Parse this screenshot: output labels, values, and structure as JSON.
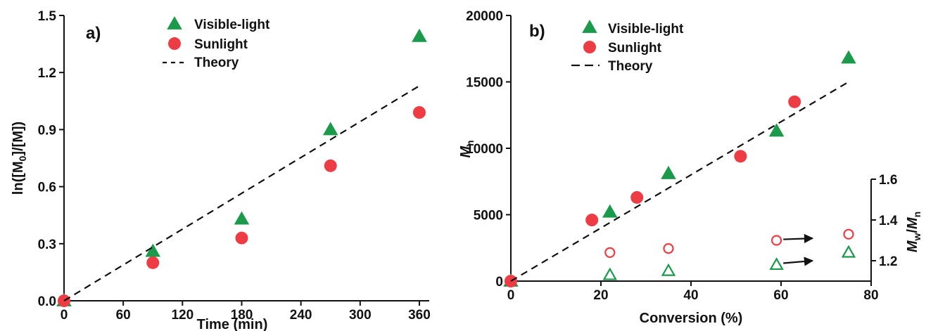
{
  "colors": {
    "visible": "#1a9a4a",
    "sunlight": "#ee3c44",
    "theory": "#111111",
    "axis": "#111111"
  },
  "chart_data": [
    {
      "type": "scatter",
      "panel_label": "a)",
      "xlabel": "Time (min)",
      "ylabel": "ln([M0]/[M])",
      "ylabel_parts": {
        "pre": "ln([M",
        "sub": "0",
        "post": "]/[M])"
      },
      "xlim": [
        0,
        370
      ],
      "ylim": [
        0,
        1.5
      ],
      "xticks": [
        0,
        60,
        120,
        180,
        240,
        300,
        360
      ],
      "yticks": [
        0.0,
        0.3,
        0.6,
        0.9,
        1.2,
        1.5
      ],
      "ytick_labels": [
        "0.0",
        "0.3",
        "0.6",
        "0.9",
        "1.2",
        "1.5"
      ],
      "legend": {
        "placement": "top-center",
        "entries": [
          "Visible-light",
          "Sunlight",
          "Theory"
        ]
      },
      "series": [
        {
          "name": "Visible-light",
          "marker": "filled-triangle",
          "points": [
            [
              0,
              0.0
            ],
            [
              90,
              0.26
            ],
            [
              180,
              0.43
            ],
            [
              270,
              0.9
            ],
            [
              360,
              1.39
            ]
          ]
        },
        {
          "name": "Sunlight",
          "marker": "filled-circle",
          "points": [
            [
              0,
              0.0
            ],
            [
              90,
              0.2
            ],
            [
              180,
              0.33
            ],
            [
              270,
              0.71
            ],
            [
              360,
              0.99
            ]
          ]
        },
        {
          "name": "Theory",
          "marker": "dashed-line",
          "points": [
            [
              0,
              0.0
            ],
            [
              360,
              1.13
            ]
          ]
        }
      ]
    },
    {
      "type": "scatter",
      "panel_label": "b)",
      "xlabel": "Conversion (%)",
      "ylabel": "Mn",
      "ylabel_parts": {
        "main": "M",
        "sub": "n"
      },
      "y2label": "Mw/Mn",
      "y2label_parts": {
        "main1": "M",
        "sub1": "w",
        "slash": "/",
        "main2": "M",
        "sub2": "n"
      },
      "xlim": [
        0,
        80
      ],
      "ylim": [
        0,
        20000
      ],
      "y2lim": [
        1.1,
        1.6
      ],
      "y2axis_range": [
        1.1,
        1.6
      ],
      "xticks": [
        0,
        20,
        40,
        60,
        80
      ],
      "yticks": [
        0,
        5000,
        10000,
        15000,
        20000
      ],
      "y2ticks": [
        1.2,
        1.4,
        1.6
      ],
      "y2tick_labels": [
        "1.2",
        "1.4",
        "1.6"
      ],
      "legend": {
        "placement": "top-left",
        "entries": [
          "Visible-light",
          "Sunlight",
          "Theory"
        ]
      },
      "series": [
        {
          "name": "Visible-light",
          "marker": "filled-triangle",
          "axis": "left",
          "points": [
            [
              0,
              0
            ],
            [
              22,
              5200
            ],
            [
              35,
              8100
            ],
            [
              59,
              11300
            ],
            [
              75,
              16800
            ]
          ]
        },
        {
          "name": "Sunlight",
          "marker": "filled-circle",
          "axis": "left",
          "points": [
            [
              0,
              0
            ],
            [
              18,
              4600
            ],
            [
              28,
              6300
            ],
            [
              51,
              9400
            ],
            [
              63,
              13500
            ]
          ]
        },
        {
          "name": "Theory",
          "marker": "dashed-line",
          "axis": "left",
          "points": [
            [
              0,
              0
            ],
            [
              75,
              15000
            ]
          ]
        },
        {
          "name": "",
          "marker": "open-circle",
          "color": "sunlight",
          "axis": "right",
          "points": [
            [
              22,
              1.24
            ],
            [
              35,
              1.26
            ],
            [
              59,
              1.3
            ],
            [
              75,
              1.33
            ]
          ]
        },
        {
          "name": "",
          "marker": "open-triangle",
          "color": "visible",
          "axis": "right",
          "points": [
            [
              22,
              1.13
            ],
            [
              35,
              1.15
            ],
            [
              59,
              1.18
            ],
            [
              75,
              1.24
            ]
          ]
        }
      ],
      "annotations": [
        {
          "type": "arrow",
          "from": [
            60.5,
            1.305
          ],
          "to": [
            67,
            1.31
          ],
          "color": "theory"
        },
        {
          "type": "arrow",
          "from": [
            60.5,
            1.188
          ],
          "to": [
            67,
            1.2
          ],
          "color": "theory"
        }
      ]
    }
  ]
}
